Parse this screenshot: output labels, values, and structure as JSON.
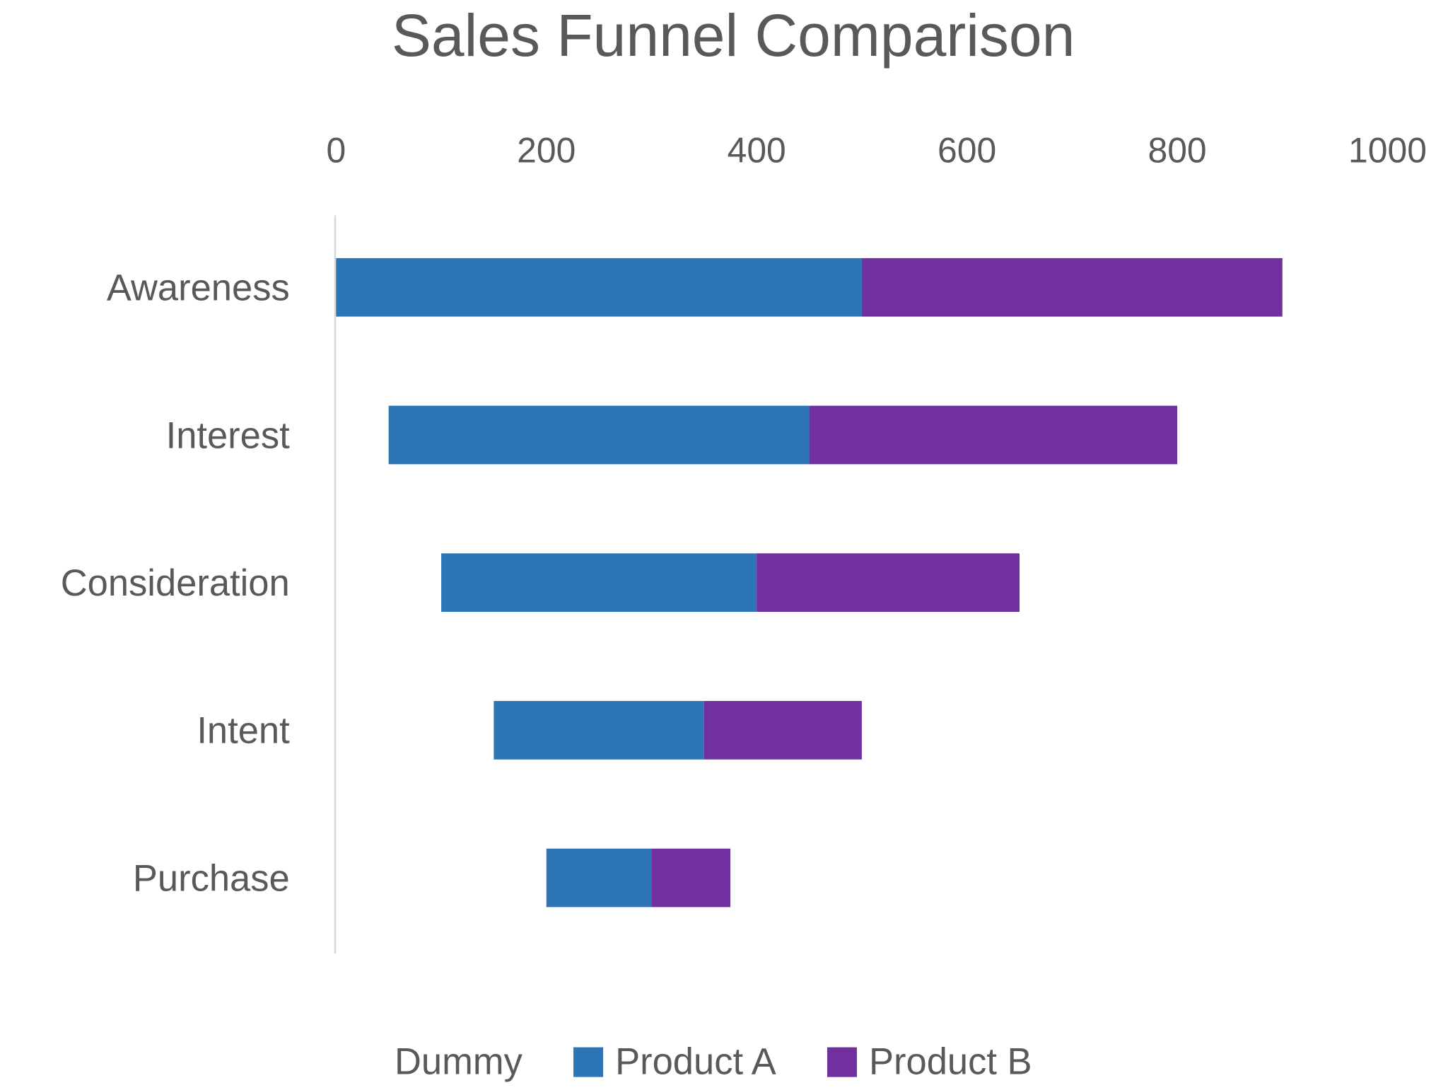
{
  "chart_data": {
    "type": "bar",
    "orientation": "horizontal",
    "stacked": true,
    "title": "Sales Funnel Comparison",
    "xlabel": "",
    "ylabel": "",
    "xlim": [
      0,
      1000
    ],
    "x_ticks": [
      "0",
      "200",
      "400",
      "600",
      "800",
      "1000"
    ],
    "x_axis_position": "top",
    "grid": false,
    "legend_position": "bottom",
    "categories": [
      "Awareness",
      "Interest",
      "Consideration",
      "Intent",
      "Purchase"
    ],
    "series": [
      {
        "name": "Dummy",
        "values": [
          0,
          50,
          100,
          150,
          200
        ],
        "color": "none"
      },
      {
        "name": "Product A",
        "values": [
          500,
          400,
          300,
          200,
          100
        ],
        "color": "#2E75B6"
      },
      {
        "name": "Product B",
        "values": [
          400,
          350,
          250,
          150,
          75
        ],
        "color": "#7030A0"
      }
    ]
  }
}
